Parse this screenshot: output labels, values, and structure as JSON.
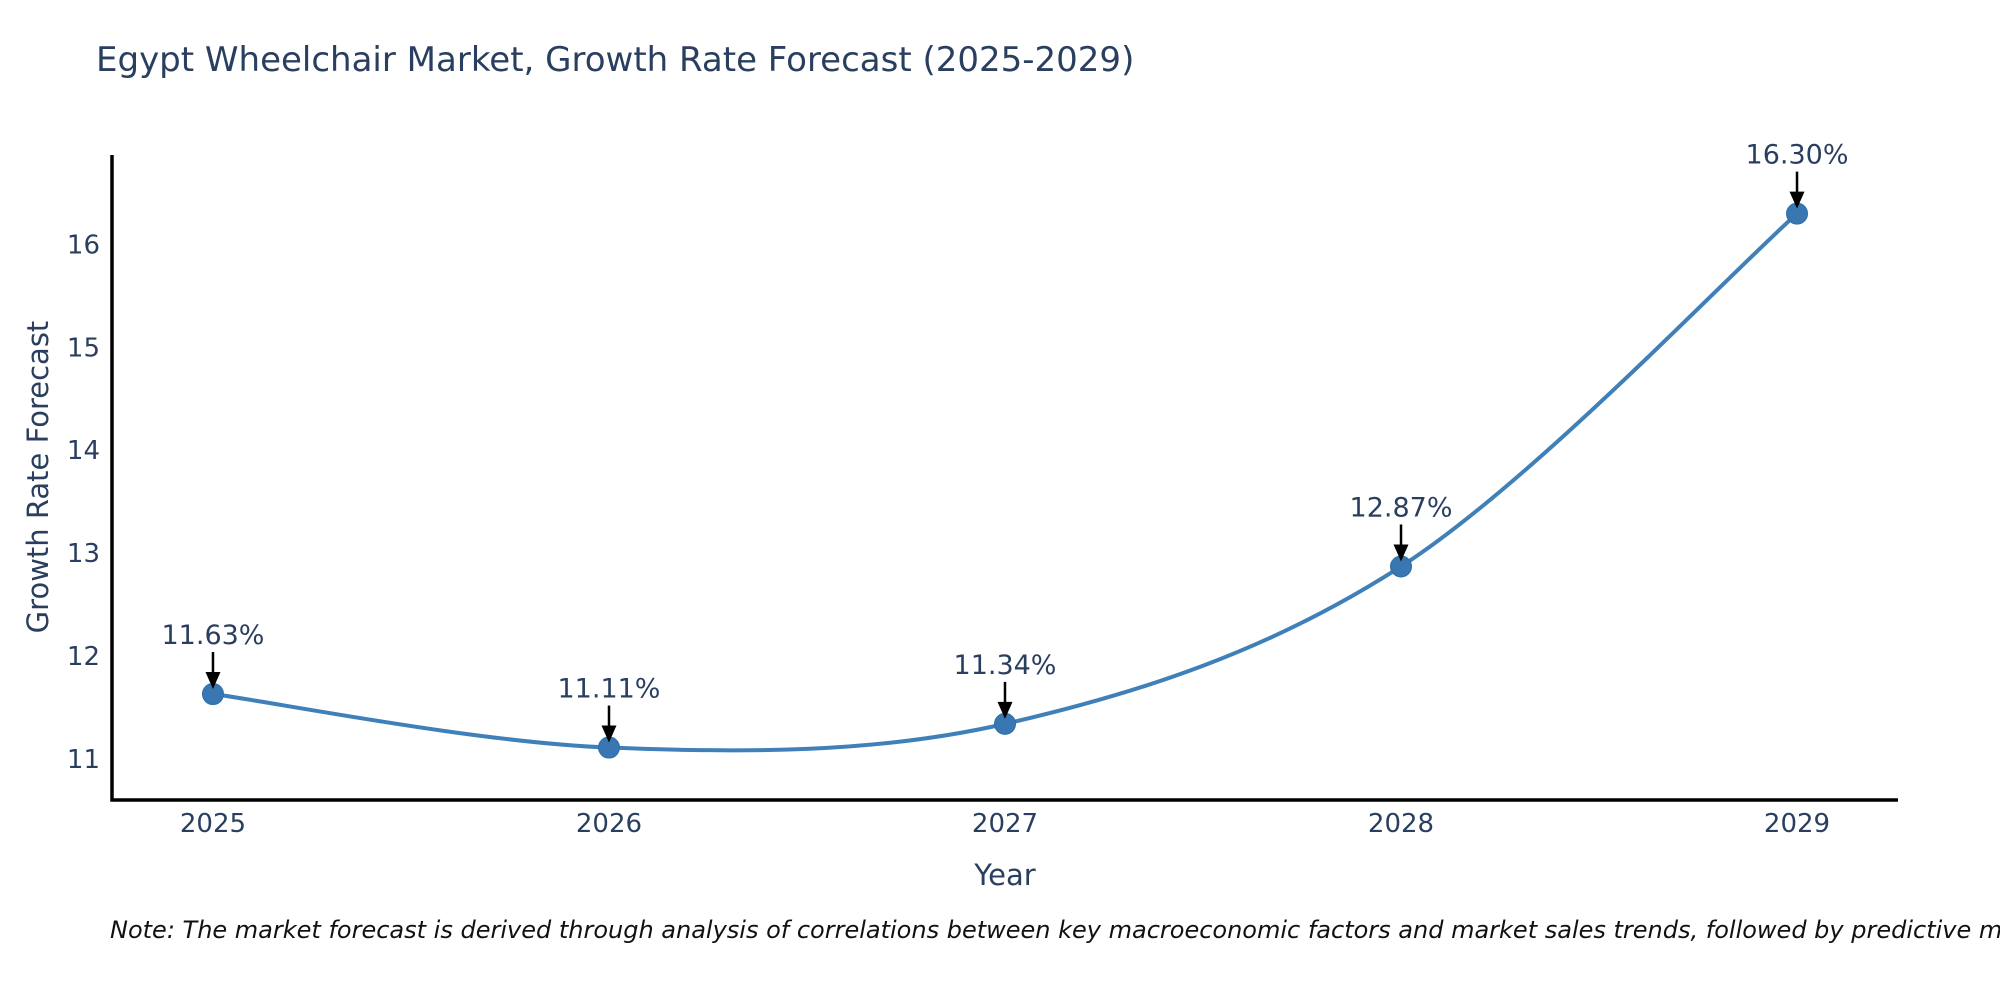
{
  "title": "Egypt Wheelchair Market, Growth Rate Forecast (2025-2029)",
  "footnote": "Note: The market forecast is derived through analysis of correlations between key macroeconomic factors and market sales trends, followed by predictive modeling to project future sales",
  "colors": {
    "line": "#4080b8",
    "marker_fill": "#3877b2",
    "marker_edge": "#2f6da8",
    "axis_line": "#000000",
    "text": "#2a3f5f",
    "arrow": "#000000",
    "note_text": "#111111",
    "background": "#ffffff"
  },
  "chart_data": {
    "type": "line",
    "title": "Egypt Wheelchair Market, Growth Rate Forecast (2025-2029)",
    "xlabel": "Year",
    "ylabel": "Growth Rate Forecast",
    "x": [
      2025,
      2026,
      2027,
      2028,
      2029
    ],
    "values": [
      11.63,
      11.11,
      11.34,
      12.87,
      16.3
    ],
    "point_labels": [
      "11.63%",
      "11.11%",
      "11.34%",
      "12.87%",
      "16.30%"
    ],
    "xticks": [
      "2025",
      "2026",
      "2027",
      "2028",
      "2029"
    ],
    "xtick_values": [
      2025,
      2026,
      2027,
      2028,
      2029
    ],
    "yticks": [
      "11",
      "12",
      "13",
      "14",
      "15",
      "16"
    ],
    "ytick_values": [
      11,
      12,
      13,
      14,
      15,
      16
    ],
    "xlim": [
      2024.745,
      2029.255
    ],
    "ylim": [
      10.6,
      16.87
    ],
    "grid": false,
    "legend_position": "none",
    "line_shape": "spline",
    "annotations_have_arrows": true
  }
}
